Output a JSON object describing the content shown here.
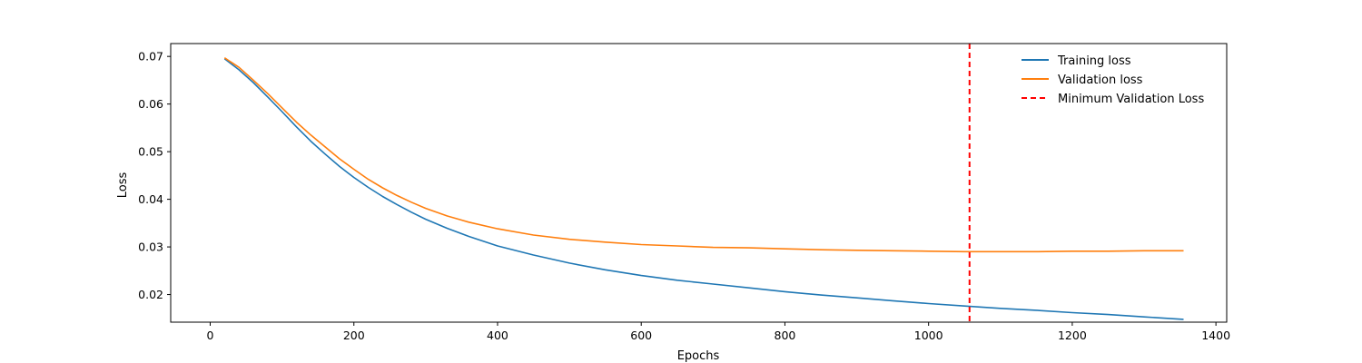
{
  "chart_data": {
    "type": "line",
    "title": "",
    "xlabel": "Epochs",
    "ylabel": "Loss",
    "xlim": [
      -55,
      1415
    ],
    "ylim": [
      0.0142,
      0.0727
    ],
    "xticks": [
      0,
      200,
      400,
      600,
      800,
      1000,
      1200,
      1400
    ],
    "yticks": [
      0.02,
      0.03,
      0.04,
      0.05,
      0.06,
      0.07
    ],
    "grid": false,
    "legend_position": "upper right",
    "series": [
      {
        "name": "Training loss",
        "color": "#1f77b4",
        "style": "solid",
        "x": [
          20,
          40,
          60,
          80,
          100,
          120,
          140,
          160,
          180,
          200,
          220,
          240,
          260,
          280,
          300,
          330,
          360,
          400,
          450,
          500,
          550,
          600,
          650,
          700,
          750,
          800,
          850,
          900,
          950,
          1000,
          1050,
          1100,
          1150,
          1200,
          1250,
          1300,
          1355
        ],
        "y": [
          0.0695,
          0.0672,
          0.0645,
          0.0615,
          0.0584,
          0.0552,
          0.0522,
          0.0495,
          0.0469,
          0.0446,
          0.0425,
          0.0406,
          0.0389,
          0.0373,
          0.0358,
          0.0339,
          0.0322,
          0.0302,
          0.0283,
          0.0266,
          0.0252,
          0.024,
          0.023,
          0.0222,
          0.0214,
          0.0206,
          0.0199,
          0.0193,
          0.0187,
          0.0181,
          0.0176,
          0.0171,
          0.0167,
          0.0162,
          0.0158,
          0.0153,
          0.0148
        ]
      },
      {
        "name": "Validation loss",
        "color": "#ff7f0e",
        "style": "solid",
        "x": [
          20,
          40,
          60,
          80,
          100,
          120,
          140,
          160,
          180,
          200,
          220,
          240,
          260,
          280,
          300,
          330,
          360,
          400,
          450,
          500,
          550,
          600,
          650,
          700,
          750,
          800,
          850,
          900,
          950,
          1000,
          1050,
          1100,
          1150,
          1200,
          1250,
          1300,
          1355
        ],
        "y": [
          0.0697,
          0.0677,
          0.065,
          0.0622,
          0.0592,
          0.0562,
          0.0535,
          0.051,
          0.0485,
          0.0463,
          0.0442,
          0.0424,
          0.0408,
          0.0394,
          0.0381,
          0.0365,
          0.0352,
          0.0338,
          0.0325,
          0.0316,
          0.031,
          0.0305,
          0.0302,
          0.0299,
          0.0298,
          0.0296,
          0.0294,
          0.0293,
          0.0292,
          0.0291,
          0.029,
          0.029,
          0.029,
          0.0291,
          0.0291,
          0.0292,
          0.0292
        ]
      },
      {
        "name": "Minimum Validation Loss",
        "color": "#ff0000",
        "style": "dashed",
        "type": "vline",
        "x": 1057
      }
    ]
  }
}
